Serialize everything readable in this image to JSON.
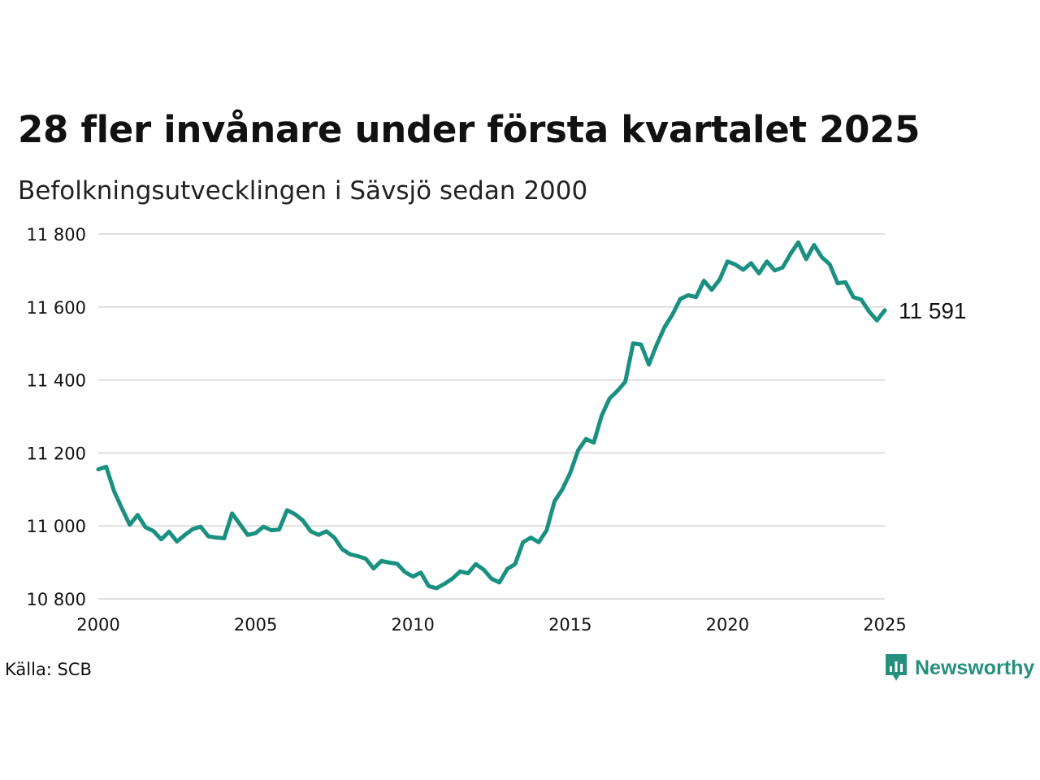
{
  "title": "28 fler invånare under första kvartalet 2025",
  "subtitle": "Befolkningsutvecklingen i Sävsjö sedan 2000",
  "source": "Källa: SCB",
  "brand": {
    "name": "Newsworthy",
    "color": "#268f7e",
    "icon": "bar-chart-speech-bubble-icon"
  },
  "colors": {
    "line": "#1a9080",
    "grid": "#dedede",
    "text": "#111111"
  },
  "chart_data": {
    "type": "line",
    "title": "28 fler invånare under första kvartalet 2025",
    "subtitle": "Befolkningsutvecklingen i Sävsjö sedan 2000",
    "xlabel": "",
    "ylabel": "",
    "xlim": [
      2000,
      2025
    ],
    "ylim": [
      10800,
      11800
    ],
    "x_ticks": [
      2000,
      2005,
      2010,
      2015,
      2020,
      2025
    ],
    "x_tick_labels": [
      "2000",
      "2005",
      "2010",
      "2015",
      "2020",
      "2025"
    ],
    "y_ticks": [
      10800,
      11000,
      11200,
      11400,
      11600,
      11800
    ],
    "y_tick_labels": [
      "10 800",
      "11 000",
      "11 200",
      "11 400",
      "11 600",
      "11 800"
    ],
    "grid": "horizontal",
    "legend": "none",
    "end_label": "11 591",
    "series": [
      {
        "x": [
          2000,
          2000.25,
          2000.5,
          2000.75,
          2001,
          2001.25,
          2001.5,
          2001.75,
          2002,
          2002.25,
          2002.5,
          2002.75,
          2003,
          2003.25,
          2003.5,
          2003.75,
          2004,
          2004.25,
          2004.5,
          2004.75,
          2005,
          2005.25,
          2005.5,
          2005.75,
          2006,
          2006.25,
          2006.5,
          2006.75,
          2007,
          2007.25,
          2007.5,
          2007.75,
          2008,
          2008.25,
          2008.5,
          2008.75,
          2009,
          2009.25,
          2009.5,
          2009.75,
          2010,
          2010.25,
          2010.5,
          2010.75,
          2011,
          2011.25,
          2011.5,
          2011.75,
          2012,
          2012.25,
          2012.5,
          2012.75,
          2013,
          2013.25,
          2013.5,
          2013.75,
          2014,
          2014.25,
          2014.5,
          2014.75,
          2015,
          2015.25,
          2015.5,
          2015.75,
          2016,
          2016.25,
          2016.5,
          2016.75,
          2017,
          2017.25,
          2017.5,
          2017.75,
          2018,
          2018.25,
          2018.5,
          2018.75,
          2019,
          2019.25,
          2019.5,
          2019.75,
          2020,
          2020.25,
          2020.5,
          2020.75,
          2021,
          2021.25,
          2021.5,
          2021.75,
          2022,
          2022.25,
          2022.5,
          2022.75,
          2023,
          2023.25,
          2023.5,
          2023.75,
          2024,
          2024.25,
          2024.5,
          2024.75,
          2025
        ],
        "values": [
          11155,
          11162,
          11095,
          11048,
          11003,
          11030,
          10996,
          10986,
          10963,
          10984,
          10957,
          10975,
          10991,
          10998,
          10971,
          10968,
          10966,
          11034,
          11005,
          10975,
          10980,
          10998,
          10988,
          10990,
          11043,
          11032,
          11015,
          10985,
          10975,
          10985,
          10968,
          10936,
          10922,
          10917,
          10910,
          10883,
          10904,
          10899,
          10896,
          10873,
          10861,
          10872,
          10835,
          10829,
          10841,
          10855,
          10875,
          10870,
          10895,
          10880,
          10855,
          10845,
          10882,
          10895,
          10955,
          10968,
          10955,
          10988,
          11067,
          11100,
          11145,
          11207,
          11238,
          11228,
          11302,
          11349,
          11370,
          11395,
          11500,
          11497,
          11442,
          11497,
          11545,
          11579,
          11622,
          11632,
          11627,
          11672,
          11647,
          11675,
          11725,
          11716,
          11702,
          11720,
          11692,
          11725,
          11700,
          11708,
          11745,
          11777,
          11731,
          11770,
          11736,
          11717,
          11665,
          11668,
          11627,
          11620,
          11588,
          11563,
          11591
        ]
      }
    ]
  }
}
